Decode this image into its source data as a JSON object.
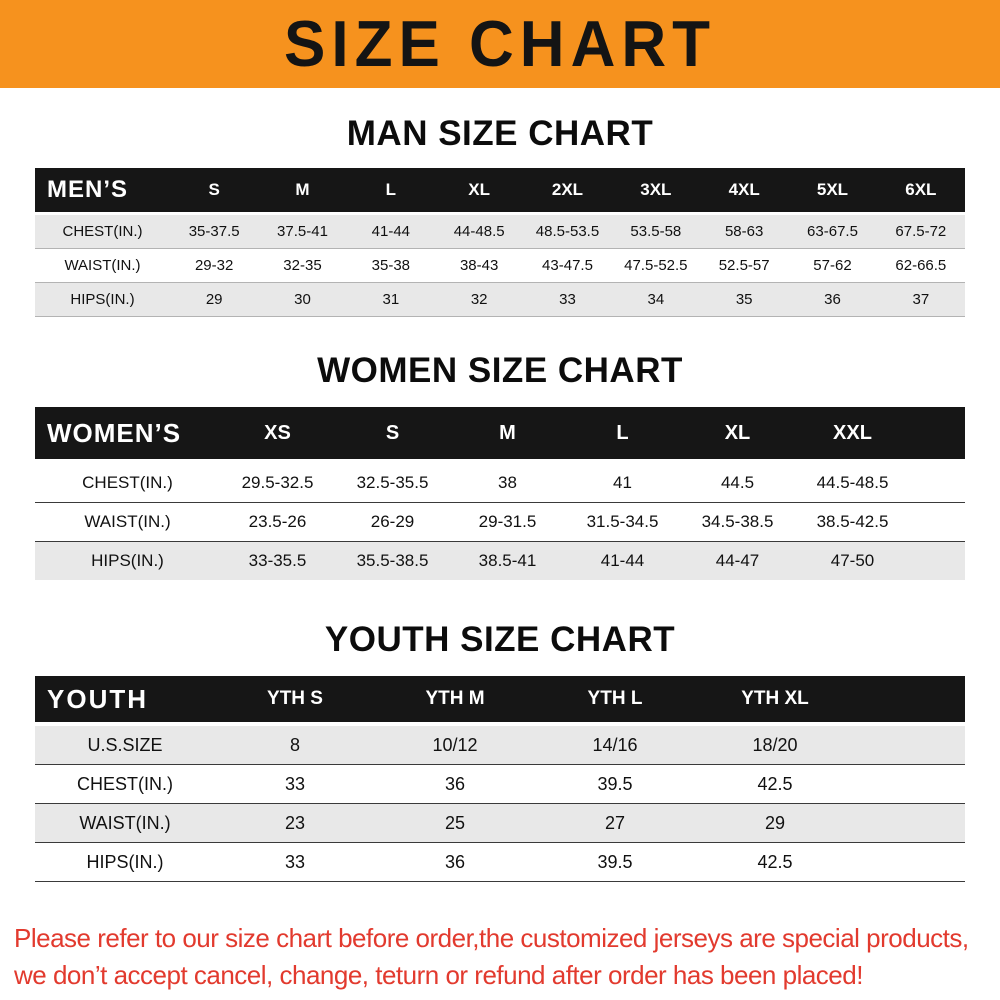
{
  "colors": {
    "banner_bg": "#F6921E",
    "header_bg": "#161616",
    "row_alt_bg": "#E8E8E8",
    "footer_text": "#E23A2E"
  },
  "banner": {
    "title": "SIZE CHART"
  },
  "sections": [
    {
      "id": "men",
      "heading": "MAN SIZE CHART",
      "table": {
        "corner_label": "MEN’S",
        "columns": [
          "S",
          "M",
          "L",
          "XL",
          "2XL",
          "3XL",
          "4XL",
          "5XL",
          "6XL"
        ],
        "rows": [
          {
            "label": "CHEST(IN.)",
            "shaded": true,
            "values": [
              "35-37.5",
              "37.5-41",
              "41-44",
              "44-48.5",
              "48.5-53.5",
              "53.5-58",
              "58-63",
              "63-67.5",
              "67.5-72"
            ]
          },
          {
            "label": "WAIST(IN.)",
            "shaded": false,
            "values": [
              "29-32",
              "32-35",
              "35-38",
              "38-43",
              "43-47.5",
              "47.5-52.5",
              "52.5-57",
              "57-62",
              "62-66.5"
            ]
          },
          {
            "label": "HIPS(IN.)",
            "shaded": true,
            "values": [
              "29",
              "30",
              "31",
              "32",
              "33",
              "34",
              "35",
              "36",
              "37"
            ]
          }
        ]
      }
    },
    {
      "id": "women",
      "heading": "WOMEN SIZE CHART",
      "table": {
        "corner_label": "WOMEN’S",
        "columns": [
          "XS",
          "S",
          "M",
          "L",
          "XL",
          "XXL"
        ],
        "rows": [
          {
            "label": "CHEST(IN.)",
            "shaded": false,
            "values": [
              "29.5-32.5",
              "32.5-35.5",
              "38",
              "41",
              "44.5",
              "44.5-48.5"
            ]
          },
          {
            "label": "WAIST(IN.)",
            "shaded": false,
            "values": [
              "23.5-26",
              "26-29",
              "29-31.5",
              "31.5-34.5",
              "34.5-38.5",
              "38.5-42.5"
            ]
          },
          {
            "label": "HIPS(IN.)",
            "shaded": true,
            "values": [
              "33-35.5",
              "35.5-38.5",
              "38.5-41",
              "41-44",
              "44-47",
              "47-50"
            ]
          }
        ]
      }
    },
    {
      "id": "youth",
      "heading": "YOUTH SIZE CHART",
      "table": {
        "corner_label": "YOUTH",
        "columns": [
          "YTH S",
          "YTH M",
          "YTH L",
          "YTH XL"
        ],
        "rows": [
          {
            "label": "U.S.SIZE",
            "shaded": true,
            "values": [
              "8",
              "10/12",
              "14/16",
              "18/20"
            ]
          },
          {
            "label": "CHEST(IN.)",
            "shaded": false,
            "values": [
              "33",
              "36",
              "39.5",
              "42.5"
            ]
          },
          {
            "label": "WAIST(IN.)",
            "shaded": true,
            "values": [
              "23",
              "25",
              "27",
              "29"
            ]
          },
          {
            "label": "HIPS(IN.)",
            "shaded": false,
            "values": [
              "33",
              "36",
              "39.5",
              "42.5"
            ]
          }
        ]
      }
    }
  ],
  "footer": {
    "line1": "Please refer to our size chart before order,the customized jerseys are special products,",
    "line2": "we don’t accept cancel, change, teturn or refund after order has been placed!"
  }
}
